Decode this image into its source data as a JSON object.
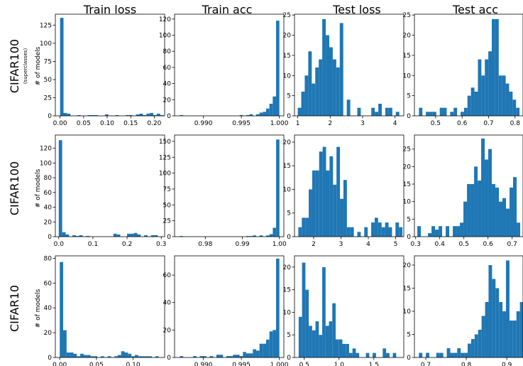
{
  "columns": [
    "Train loss",
    "Train acc",
    "Test loss",
    "Test acc"
  ],
  "rows": [
    {
      "title": "CIFAR100",
      "subtitle": "(superclasses)",
      "ylabel": "# of models"
    },
    {
      "title": "CIFAR100",
      "subtitle": "",
      "ylabel": "# of models"
    },
    {
      "title": "CIFAR10",
      "subtitle": "",
      "ylabel": "# of models"
    }
  ],
  "colors": {
    "bar": "#1f77b4"
  },
  "chart_data": [
    {
      "type": "bar",
      "row": 0,
      "col": 0,
      "title": "Train loss",
      "xlim": [
        -0.01,
        0.222
      ],
      "ylim": [
        0,
        140
      ],
      "bin_start": 0.0,
      "bin_width": 0.00733,
      "values": [
        135,
        4,
        3,
        0,
        0,
        1,
        0,
        0,
        1,
        1,
        1,
        0,
        0,
        2,
        0,
        0,
        1,
        0,
        0,
        1,
        1,
        0,
        2,
        3,
        1,
        3,
        4,
        1,
        3,
        1
      ],
      "xticks": [
        0.0,
        0.05,
        0.1,
        0.15,
        0.2
      ],
      "xtick_labels": [
        "0.00",
        "0.05",
        "0.10",
        "0.15",
        "0.20"
      ],
      "yticks": [
        0,
        25,
        50,
        75,
        100,
        125
      ],
      "ytick_labels": [
        "0",
        "25",
        "50",
        "75",
        "100",
        "125"
      ]
    },
    {
      "type": "bar",
      "row": 0,
      "col": 1,
      "title": "Train acc",
      "xlim": [
        0.9862,
        1.0006
      ],
      "ylim": [
        0,
        126
      ],
      "bin_start": 0.9869,
      "bin_width": 0.000437,
      "values": [
        1,
        0,
        0,
        0,
        0,
        0,
        0,
        0,
        0,
        0,
        0,
        0,
        0,
        0,
        0,
        0,
        0,
        0,
        1,
        0,
        1,
        2,
        0,
        2,
        4,
        5,
        9,
        15,
        24,
        118
      ],
      "xticks": [
        0.99,
        0.995,
        1.0
      ],
      "xtick_labels": [
        "0.990",
        "0.995",
        "1.000"
      ],
      "yticks": [
        0,
        20,
        40,
        60,
        80,
        100,
        120
      ],
      "ytick_labels": [
        "0",
        "20",
        "40",
        "60",
        "80",
        "100",
        "120"
      ]
    },
    {
      "type": "bar",
      "row": 0,
      "col": 2,
      "title": "Test loss",
      "xlim": [
        0.9,
        4.27
      ],
      "ylim": [
        0,
        25.2
      ],
      "bin_start": 1.0,
      "bin_width": 0.108,
      "values": [
        2,
        6,
        10,
        16,
        8,
        12,
        14,
        24,
        20,
        17,
        14,
        12,
        23,
        0,
        4,
        0,
        0,
        2,
        0,
        0,
        0,
        2,
        1,
        3,
        0,
        2,
        2,
        0,
        1,
        0
      ],
      "xticks": [
        1,
        2,
        3,
        4
      ],
      "xtick_labels": [
        "1",
        "2",
        "3",
        "4"
      ],
      "yticks": [
        0,
        5,
        10,
        15,
        20,
        25
      ],
      "ytick_labels": [
        "0",
        "5",
        "10",
        "15",
        "20",
        "25"
      ]
    },
    {
      "type": "bar",
      "row": 0,
      "col": 3,
      "title": "Test acc",
      "xlim": [
        0.42,
        0.83
      ],
      "ylim": [
        0,
        25.2
      ],
      "bin_start": 0.437,
      "bin_width": 0.0131,
      "values": [
        2,
        0,
        1,
        1,
        1,
        0,
        2,
        2,
        0,
        1,
        2,
        0,
        1,
        2,
        5,
        7,
        6,
        14,
        10,
        14,
        16,
        24,
        24,
        10,
        10,
        8,
        6,
        4,
        2,
        0
      ],
      "xticks": [
        0.5,
        0.6,
        0.7,
        0.8
      ],
      "xtick_labels": [
        "0.5",
        "0.6",
        "0.7",
        "0.8"
      ],
      "yticks": [
        0,
        5,
        10,
        15,
        20,
        25
      ],
      "ytick_labels": [
        "0",
        "5",
        "10",
        "15",
        "20",
        "25"
      ]
    },
    {
      "type": "bar",
      "row": 1,
      "col": 0,
      "title": "Train loss",
      "xlim": [
        -0.01,
        0.31
      ],
      "ylim": [
        0,
        138
      ],
      "bin_start": 0.0,
      "bin_width": 0.01,
      "values": [
        131,
        6,
        3,
        0,
        2,
        1,
        2,
        0,
        1,
        0,
        0,
        0,
        0,
        0,
        0,
        0,
        4,
        3,
        0,
        0,
        4,
        4,
        5,
        3,
        0,
        2,
        0,
        2,
        2,
        0
      ],
      "xticks": [
        0.0,
        0.1,
        0.2,
        0.3
      ],
      "xtick_labels": [
        "0.0",
        "0.1",
        "0.2",
        "0.3"
      ],
      "yticks": [
        0,
        20,
        40,
        60,
        80,
        100,
        120
      ],
      "ytick_labels": [
        "0",
        "20",
        "40",
        "60",
        "80",
        "100",
        "120"
      ]
    },
    {
      "type": "bar",
      "row": 1,
      "col": 1,
      "title": "Train acc",
      "xlim": [
        0.9717,
        1.0012
      ],
      "ylim": [
        0,
        160
      ],
      "bin_start": 0.9731,
      "bin_width": 0.000897,
      "values": [
        1,
        0,
        0,
        0,
        0,
        0,
        0,
        0,
        0,
        0,
        0,
        0,
        0,
        0,
        0,
        0,
        0,
        0,
        0,
        0,
        1,
        1,
        2,
        0,
        2,
        0,
        2,
        4,
        14,
        153
      ],
      "xticks": [
        0.98,
        0.99,
        1.0
      ],
      "xtick_labels": [
        "0.98",
        "0.99",
        "1.00"
      ],
      "yticks": [
        0,
        25,
        50,
        75,
        100,
        125,
        150
      ],
      "ytick_labels": [
        "0",
        "25",
        "50",
        "75",
        "100",
        "125",
        "150"
      ]
    },
    {
      "type": "bar",
      "row": 1,
      "col": 2,
      "title": "Test loss",
      "xlim": [
        1.3,
        5.3
      ],
      "ylim": [
        0,
        21.5
      ],
      "bin_start": 1.44,
      "bin_width": 0.127,
      "values": [
        2,
        4,
        4,
        10,
        14,
        14,
        18,
        19,
        14,
        17,
        11,
        19,
        8,
        12,
        2,
        2,
        0,
        1,
        0,
        2,
        0,
        3,
        4,
        3,
        2,
        3,
        2,
        0,
        3,
        2
      ],
      "xticks": [
        2,
        3,
        4,
        5
      ],
      "xtick_labels": [
        "2",
        "3",
        "4",
        "5"
      ],
      "yticks": [
        0,
        5,
        10,
        15,
        20
      ],
      "ytick_labels": [
        "0",
        "5",
        "10",
        "15",
        "20"
      ]
    },
    {
      "type": "bar",
      "row": 1,
      "col": 3,
      "title": "Test acc",
      "xlim": [
        0.295,
        0.745
      ],
      "ylim": [
        0,
        29
      ],
      "bin_start": 0.307,
      "bin_width": 0.0147,
      "values": [
        3,
        0,
        0,
        1,
        3,
        2,
        3,
        0,
        3,
        0,
        3,
        3,
        4,
        10,
        15,
        15,
        20,
        16,
        28,
        22,
        25,
        15,
        14,
        10,
        11,
        8,
        14,
        17,
        4,
        0
      ],
      "xticks": [
        0.3,
        0.4,
        0.5,
        0.6,
        0.7
      ],
      "xtick_labels": [
        "0.3",
        "0.4",
        "0.5",
        "0.6",
        "0.7"
      ],
      "yticks": [
        0,
        5,
        10,
        15,
        20,
        25
      ],
      "ytick_labels": [
        "0",
        "5",
        "10",
        "15",
        "20",
        "25"
      ]
    },
    {
      "type": "bar",
      "row": 2,
      "col": 0,
      "title": "Train loss",
      "xlim": [
        -0.006,
        0.143
      ],
      "ylim": [
        0,
        82
      ],
      "bin_start": 0.0,
      "bin_width": 0.00465,
      "values": [
        77,
        22,
        4,
        4,
        3,
        1,
        3,
        2,
        2,
        1,
        1,
        0,
        1,
        0,
        1,
        0,
        1,
        2,
        5,
        4,
        3,
        1,
        2,
        1,
        1,
        1,
        1,
        0,
        1,
        0
      ],
      "xticks": [
        0.0,
        0.05,
        0.1
      ],
      "xtick_labels": [
        "0.00",
        "0.05",
        "0.10"
      ],
      "yticks": [
        0,
        20,
        40,
        60,
        80
      ],
      "ytick_labels": [
        "0",
        "20",
        "40",
        "60",
        "80"
      ]
    },
    {
      "type": "bar",
      "row": 2,
      "col": 1,
      "title": "Train acc",
      "xlim": [
        0.9862,
        1.0006
      ],
      "ylim": [
        0,
        74
      ],
      "bin_start": 0.9869,
      "bin_width": 0.000437,
      "values": [
        1,
        0,
        0,
        0,
        1,
        0,
        1,
        1,
        0,
        1,
        0,
        2,
        2,
        0,
        1,
        1,
        2,
        2,
        1,
        4,
        3,
        3,
        6,
        5,
        10,
        10,
        13,
        19,
        20,
        72
      ],
      "xticks": [
        0.99,
        0.995,
        1.0
      ],
      "xtick_labels": [
        "0.990",
        "0.995",
        "1.000"
      ],
      "yticks": [
        0,
        20,
        40,
        60
      ],
      "ytick_labels": [
        "0",
        "20",
        "40",
        "60"
      ]
    },
    {
      "type": "bar",
      "row": 2,
      "col": 2,
      "title": "Test loss",
      "xlim": [
        0.36,
        1.93
      ],
      "ylim": [
        0,
        22.5
      ],
      "bin_start": 0.42,
      "bin_width": 0.0483,
      "values": [
        9,
        21,
        15,
        7,
        6,
        8,
        5,
        20,
        7,
        8,
        12,
        4,
        4,
        3,
        3,
        1,
        2,
        1,
        0,
        0,
        1,
        0,
        1,
        0,
        0,
        2,
        1,
        0,
        1,
        0
      ],
      "xticks": [
        0.5,
        1.0,
        1.5
      ],
      "xtick_labels": [
        "0.5",
        "1.0",
        "1.5"
      ],
      "yticks": [
        0,
        5,
        10,
        15,
        20
      ],
      "ytick_labels": [
        "0",
        "5",
        "10",
        "15",
        "20"
      ]
    },
    {
      "type": "bar",
      "row": 2,
      "col": 3,
      "title": "Test acc",
      "xlim": [
        0.672,
        0.94
      ],
      "ylim": [
        0,
        22
      ],
      "bin_start": 0.683,
      "bin_width": 0.0086,
      "values": [
        1,
        0,
        1,
        0,
        0,
        1,
        1,
        0,
        2,
        1,
        1,
        2,
        1,
        1,
        3,
        4,
        5,
        6,
        9,
        12,
        20,
        17,
        15,
        12,
        10,
        21,
        8,
        8,
        10,
        12
      ],
      "xticks": [
        0.7,
        0.8,
        0.9
      ],
      "xtick_labels": [
        "0.7",
        "0.8",
        "0.9"
      ],
      "yticks": [
        0,
        5,
        10,
        15,
        20
      ],
      "ytick_labels": [
        "0",
        "5",
        "10",
        "15",
        "20"
      ]
    }
  ]
}
